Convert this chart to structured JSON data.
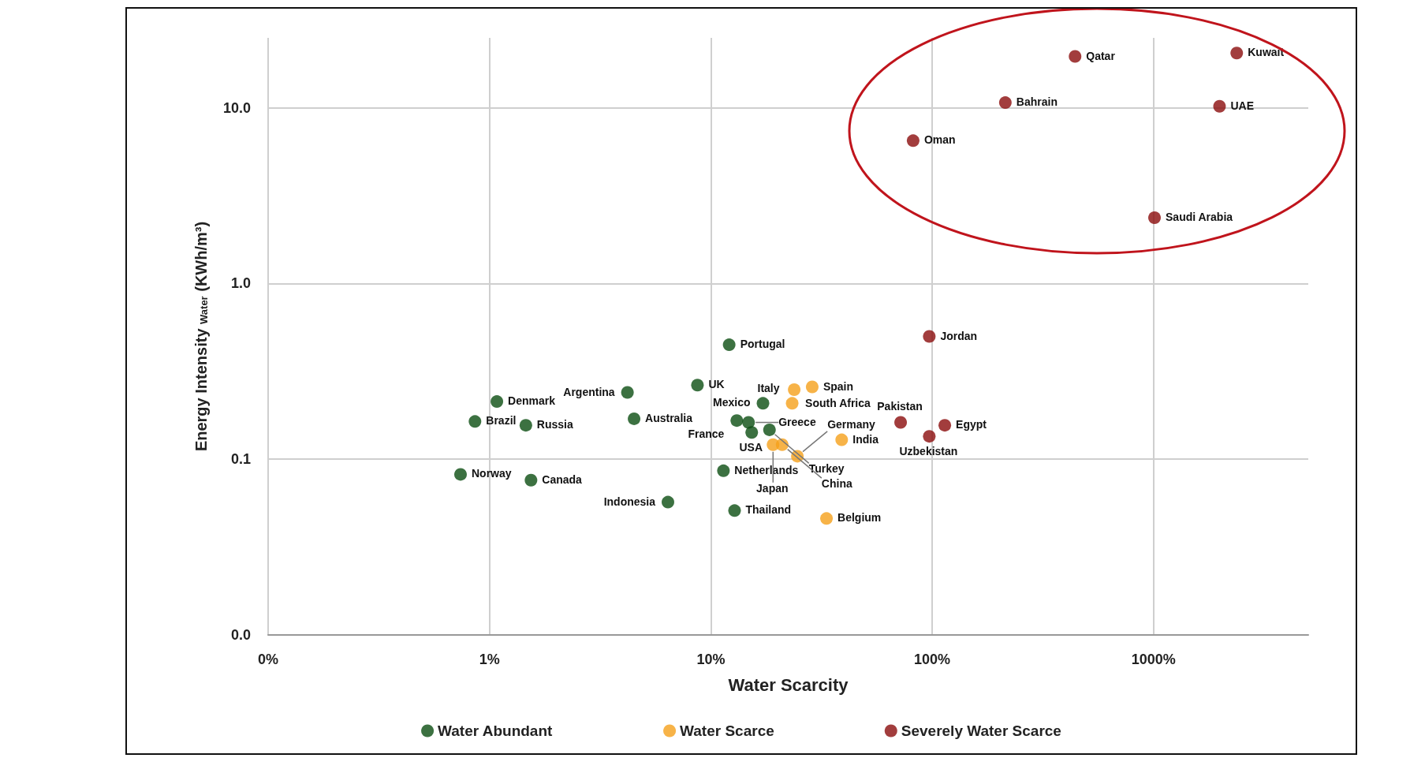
{
  "chart_data": {
    "type": "scatter",
    "xlabel": "Water Scarcity",
    "ylabel": "Energy Intensity $_{Water}$ (KWh/m³)",
    "log": "xy",
    "grid": true,
    "legend": "bottom",
    "marker": "circle",
    "xlim": [
      0.1,
      5000
    ],
    "xticks": [
      {
        "value": 0.1,
        "label": "0%"
      },
      {
        "value": 1,
        "label": "1%"
      },
      {
        "value": 10,
        "label": "10%"
      },
      {
        "value": 100,
        "label": "100%"
      },
      {
        "value": 1000,
        "label": "1000%"
      }
    ],
    "ylim": [
      0.01,
      25
    ],
    "yticks": [
      {
        "value": 0.01,
        "label": "0.0"
      },
      {
        "value": 0.1,
        "label": "0.1"
      },
      {
        "value": 1,
        "label": "1.0"
      },
      {
        "value": 10,
        "label": "10.0"
      }
    ],
    "series": [
      {
        "name": "Water Abundant",
        "color": "#0b4d12",
        "x": [
          12.1,
          8.7,
          4.2,
          1.08,
          0.86,
          1.46,
          4.5,
          0.74,
          1.54,
          6.4,
          11.4,
          12.8,
          17.2,
          13.1,
          14.8,
          15.3,
          18.4
        ],
        "values": [
          0.448,
          0.264,
          0.24,
          0.213,
          0.164,
          0.156,
          0.17,
          0.082,
          0.076,
          0.057,
          0.086,
          0.051,
          0.208,
          0.166,
          0.162,
          0.142,
          0.147
        ]
      },
      {
        "name": "Water Scarce",
        "color": "#f5a01a",
        "x": [
          23.8,
          28.7,
          23.3,
          39,
          19.1,
          21,
          24.6,
          33.3
        ],
        "values": [
          0.249,
          0.258,
          0.208,
          0.129,
          0.121,
          0.121,
          0.104,
          0.046
        ]
      },
      {
        "name": "Severely Water Scarce",
        "color": "#8b0c0c",
        "x": [
          442,
          2375,
          214,
          1986,
          82,
          1010,
          97,
          72,
          114,
          97
        ],
        "values": [
          19.6,
          20.5,
          10.7,
          10.2,
          6.5,
          2.37,
          0.5,
          0.162,
          0.156,
          0.135
        ]
      }
    ],
    "annotations": [
      {
        "text": "Portugal",
        "x": 12.1,
        "y": 0.448
      },
      {
        "text": "UK",
        "x": 8.7,
        "y": 0.264
      },
      {
        "text": "Argentina",
        "x": 4.2,
        "y": 0.24
      },
      {
        "text": "Denmark",
        "x": 1.08,
        "y": 0.213
      },
      {
        "text": "Brazil",
        "x": 0.86,
        "y": 0.164
      },
      {
        "text": "Russia",
        "x": 1.46,
        "y": 0.156
      },
      {
        "text": "Australia",
        "x": 4.5,
        "y": 0.17
      },
      {
        "text": "Norway",
        "x": 0.74,
        "y": 0.082
      },
      {
        "text": "Canada",
        "x": 1.54,
        "y": 0.076
      },
      {
        "text": "Indonesia",
        "x": 6.4,
        "y": 0.057
      },
      {
        "text": "Netherlands",
        "x": 11.4,
        "y": 0.086
      },
      {
        "text": "Thailand",
        "x": 12.8,
        "y": 0.051
      },
      {
        "text": "Mexico",
        "x": 17.2,
        "y": 0.208
      },
      {
        "text": "France",
        "x": 13.1,
        "y": 0.166
      },
      {
        "text": "Greece",
        "x": 14.8,
        "y": 0.162
      },
      {
        "text": "USA",
        "x": 15.3,
        "y": 0.142
      },
      {
        "text": "Turkey",
        "x": 18.4,
        "y": 0.147
      },
      {
        "text": "South Africa",
        "x": 23.8,
        "y": 0.249
      },
      {
        "text": "Spain",
        "x": 28.7,
        "y": 0.258
      },
      {
        "text": "Italy",
        "x": 23.3,
        "y": 0.208
      },
      {
        "text": "India",
        "x": 39,
        "y": 0.129
      },
      {
        "text": "Japan",
        "x": 19.1,
        "y": 0.121
      },
      {
        "text": "China",
        "x": 21,
        "y": 0.121
      },
      {
        "text": "Germany",
        "x": 24.6,
        "y": 0.104
      },
      {
        "text": "Belgium",
        "x": 33.3,
        "y": 0.046
      },
      {
        "text": "Qatar",
        "x": 442,
        "y": 19.6
      },
      {
        "text": "Kuwait",
        "x": 2375,
        "y": 20.5
      },
      {
        "text": "Bahrain",
        "x": 214,
        "y": 10.7
      },
      {
        "text": "UAE",
        "x": 1986,
        "y": 10.2
      },
      {
        "text": "Oman",
        "x": 82,
        "y": 6.5
      },
      {
        "text": "Saudi Arabia",
        "x": 1010,
        "y": 2.37
      },
      {
        "text": "Jordan",
        "x": 97,
        "y": 0.5
      },
      {
        "text": "Pakistan",
        "x": 72,
        "y": 0.162
      },
      {
        "text": "Egypt",
        "x": 114,
        "y": 0.156
      },
      {
        "text": "Uzbekistan",
        "x": 97,
        "y": 0.135
      }
    ]
  }
}
